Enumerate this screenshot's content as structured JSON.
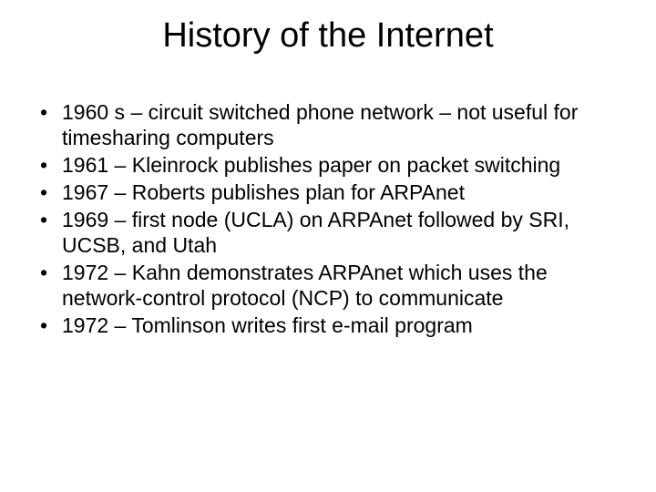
{
  "title": "History of the Internet",
  "bullets": [
    "1960 s – circuit switched phone network – not useful for timesharing computers",
    "1961 – Kleinrock publishes paper on packet switching",
    "1967 – Roberts publishes plan for ARPAnet",
    "1969 – first node (UCLA) on ARPAnet followed by SRI, UCSB, and Utah",
    "1972 – Kahn demonstrates ARPAnet which uses the network-control protocol (NCP) to communicate",
    "1972 – Tomlinson writes first e-mail program"
  ],
  "style": {
    "title_fontsize": 38,
    "bullet_fontsize": 23,
    "background_color": "#ffffff",
    "text_color": "#000000",
    "font_family": "Arial"
  }
}
